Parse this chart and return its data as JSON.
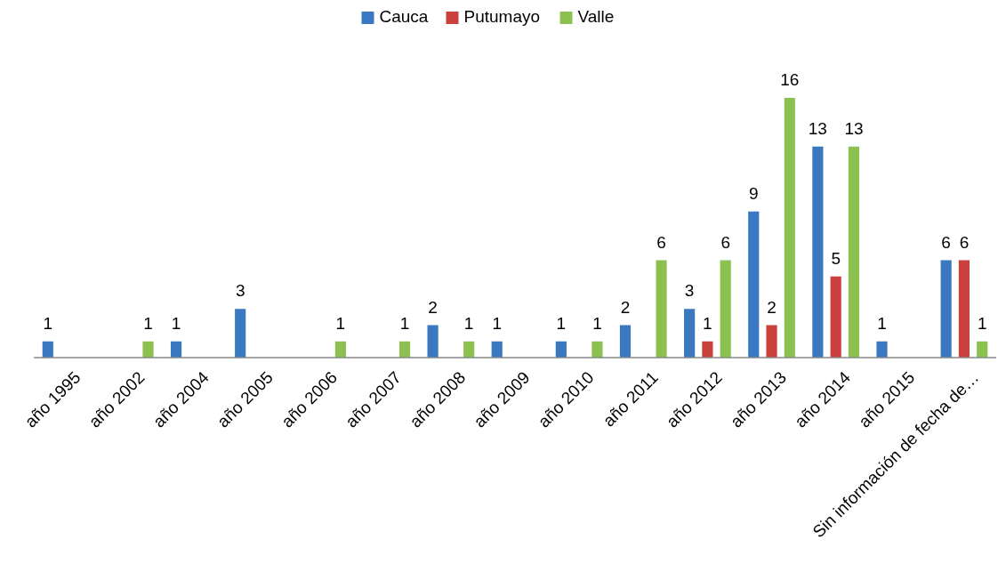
{
  "chart_data": {
    "type": "bar",
    "categories": [
      "año 1995",
      "año 2002",
      "año 2004",
      "año 2005",
      "año 2006",
      "año 2007",
      "año 2008",
      "año 2009",
      "año 2010",
      "año 2011",
      "año 2012",
      "año 2013",
      "año 2014",
      "año 2015",
      "Sin información de fecha de…"
    ],
    "series": [
      {
        "name": "Cauca",
        "color": "#3a78c2",
        "values": [
          1,
          null,
          1,
          3,
          null,
          null,
          2,
          1,
          1,
          2,
          3,
          9,
          13,
          1,
          6
        ]
      },
      {
        "name": "Putumayo",
        "color": "#c9403d",
        "values": [
          null,
          null,
          null,
          null,
          null,
          null,
          null,
          null,
          null,
          null,
          1,
          2,
          5,
          null,
          6
        ]
      },
      {
        "name": "Valle",
        "color": "#8cc152",
        "values": [
          null,
          1,
          null,
          null,
          1,
          1,
          1,
          null,
          1,
          6,
          6,
          16,
          13,
          null,
          1
        ]
      }
    ],
    "data_labels": true,
    "legend": "top"
  }
}
